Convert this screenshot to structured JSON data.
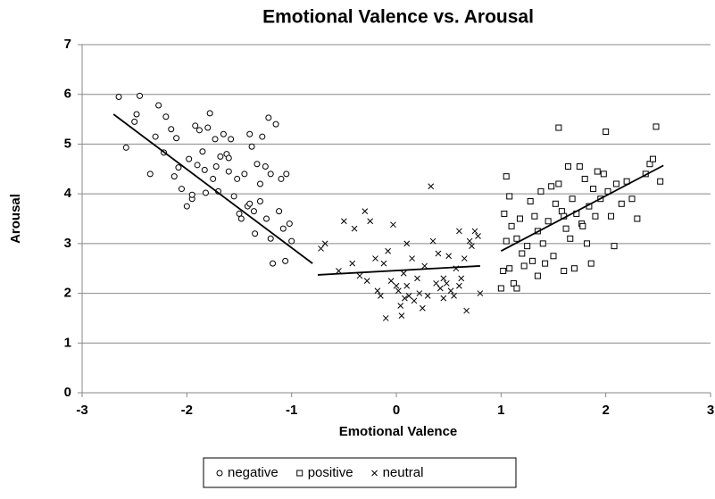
{
  "chart_data": {
    "type": "scatter",
    "title": "Emotional Valence vs. Arousal",
    "x_label": "Emotional Valence",
    "y_label": "Arousal",
    "xlim": [
      -3,
      3
    ],
    "xticks": [
      -3,
      -2,
      -1,
      0,
      1,
      2,
      3
    ],
    "ylim": [
      0,
      7
    ],
    "yticks": [
      0,
      1,
      2,
      3,
      4,
      5,
      6,
      7
    ],
    "grid": true,
    "legend": "bottom",
    "series": [
      {
        "name": "negative",
        "marker": "circle",
        "color": "#000000",
        "x": [
          -2.65,
          -2.58,
          -2.45,
          -2.48,
          -2.5,
          -2.35,
          -2.3,
          -2.27,
          -2.2,
          -2.22,
          -2.15,
          -2.1,
          -2.08,
          -2.05,
          -2.0,
          -1.98,
          -1.95,
          -1.92,
          -1.9,
          -1.88,
          -1.85,
          -1.83,
          -1.82,
          -1.8,
          -1.78,
          -1.75,
          -1.72,
          -1.7,
          -1.68,
          -1.65,
          -1.62,
          -1.6,
          -1.58,
          -1.55,
          -1.52,
          -1.5,
          -1.48,
          -1.45,
          -1.42,
          -1.4,
          -1.38,
          -1.36,
          -1.35,
          -1.33,
          -1.3,
          -1.3,
          -1.28,
          -1.25,
          -1.24,
          -1.22,
          -1.2,
          -1.2,
          -1.18,
          -1.15,
          -1.12,
          -1.1,
          -1.08,
          -1.06,
          -1.05,
          -1.02,
          -1.0,
          -2.12,
          -1.95,
          -1.73,
          -1.6,
          -1.4
        ],
        "y": [
          5.95,
          4.93,
          5.97,
          5.6,
          5.45,
          4.4,
          5.15,
          5.78,
          5.55,
          4.83,
          5.3,
          5.12,
          4.53,
          4.1,
          3.75,
          4.7,
          3.9,
          5.37,
          4.58,
          5.28,
          4.85,
          4.48,
          4.02,
          5.33,
          5.62,
          4.3,
          4.55,
          4.05,
          4.75,
          5.2,
          4.8,
          4.45,
          5.1,
          3.95,
          4.3,
          3.6,
          3.5,
          4.4,
          3.75,
          5.2,
          4.95,
          3.65,
          3.2,
          4.6,
          4.2,
          3.85,
          5.15,
          4.55,
          3.5,
          5.53,
          4.4,
          3.1,
          2.6,
          5.4,
          3.65,
          4.3,
          3.3,
          2.65,
          4.4,
          3.4,
          3.05,
          4.35,
          3.98,
          5.1,
          4.72,
          3.8
        ],
        "trend": {
          "x": [
            -2.7,
            -0.8
          ],
          "y": [
            5.6,
            2.6
          ]
        }
      },
      {
        "name": "positive",
        "marker": "square",
        "color": "#000000",
        "x": [
          1.0,
          1.02,
          1.03,
          1.05,
          1.05,
          1.08,
          1.08,
          1.1,
          1.12,
          1.15,
          1.18,
          1.2,
          1.22,
          1.25,
          1.28,
          1.3,
          1.32,
          1.35,
          1.38,
          1.4,
          1.42,
          1.45,
          1.48,
          1.5,
          1.52,
          1.55,
          1.55,
          1.58,
          1.6,
          1.62,
          1.64,
          1.66,
          1.68,
          1.7,
          1.72,
          1.75,
          1.77,
          1.8,
          1.82,
          1.84,
          1.86,
          1.88,
          1.9,
          1.92,
          1.95,
          1.98,
          2.0,
          2.02,
          2.05,
          2.08,
          2.1,
          2.15,
          2.2,
          2.25,
          2.3,
          2.38,
          2.42,
          2.45,
          2.48,
          2.52,
          1.15,
          1.35,
          1.6,
          1.78
        ],
        "y": [
          2.1,
          2.45,
          3.6,
          4.35,
          3.05,
          3.95,
          2.5,
          3.35,
          2.2,
          2.1,
          3.5,
          2.8,
          2.55,
          2.95,
          3.85,
          2.65,
          3.55,
          2.35,
          4.05,
          3.0,
          2.6,
          3.45,
          4.15,
          2.75,
          3.8,
          5.33,
          4.2,
          3.65,
          2.45,
          3.3,
          4.55,
          3.1,
          3.9,
          2.5,
          3.6,
          4.55,
          3.4,
          4.3,
          3.0,
          3.75,
          2.6,
          4.1,
          3.55,
          4.45,
          3.9,
          4.4,
          5.25,
          4.05,
          3.55,
          2.95,
          4.2,
          3.8,
          4.25,
          3.9,
          3.5,
          4.4,
          4.6,
          4.7,
          5.35,
          4.25,
          3.1,
          3.25,
          3.55,
          3.35
        ],
        "trend": {
          "x": [
            1.0,
            2.55
          ],
          "y": [
            2.85,
            4.57
          ]
        }
      },
      {
        "name": "neutral",
        "marker": "cross",
        "color": "#000000",
        "x": [
          -0.72,
          -0.68,
          -0.55,
          -0.5,
          -0.42,
          -0.35,
          -0.3,
          -0.28,
          -0.25,
          -0.2,
          -0.18,
          -0.15,
          -0.12,
          -0.1,
          -0.08,
          -0.05,
          -0.03,
          0.0,
          0.02,
          0.04,
          0.05,
          0.07,
          0.08,
          0.1,
          0.12,
          0.15,
          0.17,
          0.2,
          0.22,
          0.25,
          0.27,
          0.3,
          0.33,
          0.35,
          0.38,
          0.4,
          0.42,
          0.45,
          0.48,
          0.5,
          0.52,
          0.55,
          0.57,
          0.6,
          0.62,
          0.65,
          0.67,
          0.7,
          0.72,
          0.75,
          0.78,
          0.8,
          0.6,
          0.45,
          -0.4,
          0.1
        ],
        "y": [
          2.9,
          3.0,
          2.45,
          3.45,
          2.6,
          2.35,
          3.65,
          2.25,
          3.45,
          2.7,
          2.05,
          1.95,
          2.6,
          1.5,
          2.85,
          2.25,
          3.38,
          2.15,
          2.05,
          1.75,
          1.55,
          2.4,
          1.9,
          2.15,
          1.95,
          2.7,
          1.85,
          2.3,
          2.0,
          1.7,
          2.55,
          1.95,
          4.15,
          3.05,
          2.2,
          2.8,
          2.1,
          1.9,
          2.2,
          2.75,
          2.05,
          1.95,
          2.5,
          3.25,
          2.3,
          2.7,
          1.65,
          3.05,
          2.95,
          3.25,
          3.15,
          2.0,
          2.15,
          2.3,
          3.3,
          3.0
        ],
        "trend": {
          "x": [
            -0.75,
            0.8
          ],
          "y": [
            2.37,
            2.55
          ]
        }
      }
    ]
  }
}
